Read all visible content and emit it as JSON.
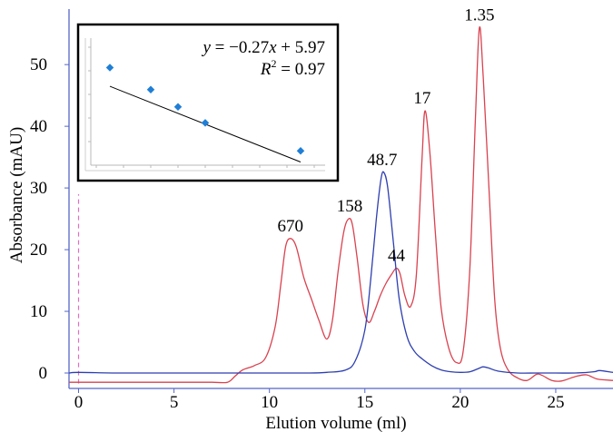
{
  "chart_data": {
    "type": "line",
    "xlabel": "Elution volume (ml)",
    "ylabel": "Absorbance (mAU)",
    "xlim": [
      -0.5,
      28
    ],
    "ylim": [
      -2.5,
      59
    ],
    "xticks": [
      0,
      5,
      10,
      15,
      20,
      25
    ],
    "yticks": [
      0,
      10,
      20,
      30,
      40,
      50
    ],
    "grid": false,
    "colors": {
      "standards": "#d9424f",
      "sample": "#2d3fb0",
      "axis": "#5566c8",
      "marker": "#e06fc0"
    },
    "series": [
      {
        "color": "#d9424f",
        "x": [
          -0.5,
          0,
          1,
          2,
          3,
          4,
          5,
          6,
          7,
          7.8,
          8.2,
          8.6,
          9.2,
          9.8,
          10.3,
          10.6,
          10.85,
          11.1,
          11.4,
          11.8,
          12.2,
          12.6,
          13.0,
          13.3,
          13.6,
          13.9,
          14.15,
          14.35,
          14.6,
          14.9,
          15.2,
          15.5,
          15.8,
          16.1,
          16.4,
          16.65,
          16.85,
          17.1,
          17.4,
          17.7,
          18.0,
          18.15,
          18.4,
          18.7,
          19.0,
          19.4,
          19.8,
          20.15,
          20.5,
          20.8,
          21.0,
          21.2,
          21.5,
          21.8,
          22.1,
          22.5,
          23.0,
          23.5,
          24.0,
          24.3,
          24.8,
          25.3,
          26.0,
          26.6,
          27.2,
          28
        ],
        "values": [
          -1.5,
          -1.5,
          -1.5,
          -1.5,
          -1.5,
          -1.5,
          -1.5,
          -1.5,
          -1.5,
          -1.5,
          -0.5,
          0.5,
          1.2,
          2.5,
          7.5,
          14.5,
          20.5,
          21.8,
          20.5,
          15.5,
          12.0,
          8.5,
          5.5,
          8.5,
          16.5,
          23.0,
          25.0,
          24.0,
          18.5,
          11.0,
          8.2,
          10.0,
          12.5,
          14.5,
          16.0,
          17.0,
          16.0,
          12.5,
          10.8,
          16.0,
          35.0,
          42.5,
          36.0,
          22.5,
          10.5,
          4.0,
          1.7,
          3.5,
          17.0,
          42.0,
          56.0,
          48.0,
          30.0,
          12.0,
          4.0,
          0.5,
          -0.8,
          -1.2,
          -0.2,
          -0.4,
          -1.2,
          -1.3,
          -0.6,
          -0.3,
          -1.0,
          -1.2
        ]
      },
      {
        "color": "#2d3fb0",
        "x": [
          -0.5,
          0,
          2,
          4,
          6,
          8,
          10,
          12,
          13,
          14,
          14.5,
          15.0,
          15.3,
          15.6,
          15.85,
          16.0,
          16.2,
          16.5,
          16.8,
          17.2,
          17.6,
          18.0,
          18.5,
          19.0,
          19.5,
          20.0,
          20.5,
          21.0,
          21.2,
          21.5,
          22,
          23,
          24,
          25,
          26,
          27,
          27.3,
          28
        ],
        "values": [
          0.0,
          0.1,
          0.0,
          0.0,
          0.0,
          0.0,
          0.0,
          0.0,
          0.1,
          0.5,
          2.0,
          7.0,
          15.0,
          25.0,
          31.5,
          32.5,
          30.0,
          21.0,
          12.0,
          6.0,
          3.5,
          2.3,
          1.2,
          0.5,
          0.2,
          0.1,
          0.2,
          0.8,
          1.0,
          0.8,
          0.3,
          0.0,
          0.0,
          0.0,
          0.0,
          0.2,
          0.4,
          0.1
        ]
      }
    ],
    "peak_labels": [
      {
        "text": "670",
        "x": 11.1,
        "y": 21.8
      },
      {
        "text": "158",
        "x": 14.2,
        "y": 25.0
      },
      {
        "text": "48.7",
        "x": 15.9,
        "y": 32.5
      },
      {
        "text": "44",
        "x": 16.65,
        "y": 17.0
      },
      {
        "text": "17",
        "x": 18.0,
        "y": 42.5
      },
      {
        "text": "1.35",
        "x": 21.0,
        "y": 56.0
      }
    ],
    "inset": {
      "type": "scatter",
      "equation_prefix": "y",
      "equation_body": " = −0.27",
      "equation_var": "x",
      "equation_suffix": " + 5.97",
      "r2_base": "R",
      "r2_exp": "2",
      "r2_value": " = 0.97",
      "points": [
        {
          "x": 0.5,
          "y": 5.6
        },
        {
          "x": 2.0,
          "y": 5.05
        },
        {
          "x": 3.0,
          "y": 4.62
        },
        {
          "x": 4.0,
          "y": 4.22
        },
        {
          "x": 7.5,
          "y": 3.52
        }
      ],
      "fit": {
        "slope": -0.27,
        "intercept": 5.97,
        "x_range": [
          0.5,
          7.5
        ]
      },
      "xlim": [
        0,
        8
      ],
      "ylim": [
        3.3,
        6.2
      ],
      "marker_color": "#1f7fd6"
    }
  }
}
